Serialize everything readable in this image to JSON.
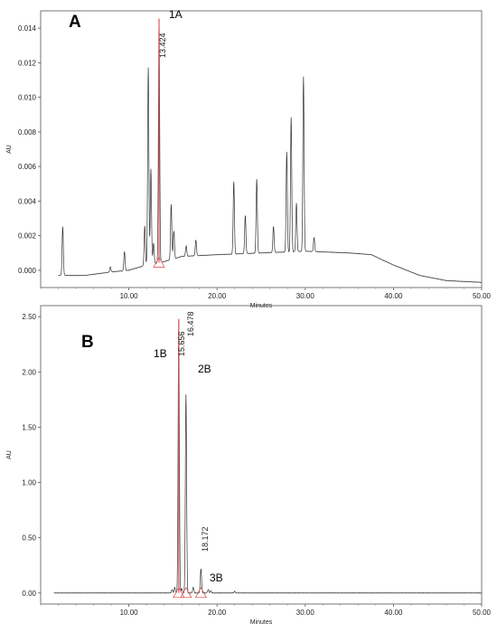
{
  "chart_data": [
    {
      "type": "line",
      "panel_label": "A",
      "xlabel": "Minutes",
      "ylabel": "AU",
      "xlim": [
        0,
        50
      ],
      "ylim": [
        -0.001,
        0.015
      ],
      "x_ticks": [
        "10.00",
        "20.00",
        "30.00",
        "40.00",
        "50.00"
      ],
      "y_ticks": [
        "0.000",
        "0.002",
        "0.004",
        "0.006",
        "0.008",
        "0.010",
        "0.012",
        "0.014"
      ],
      "baseline": [
        [
          0,
          -0.0003
        ],
        [
          5,
          -0.0003
        ],
        [
          8,
          -0.0001
        ],
        [
          10,
          0.0
        ],
        [
          12,
          0.0003
        ],
        [
          14,
          0.0005
        ],
        [
          16,
          0.0008
        ],
        [
          20,
          0.0009
        ],
        [
          25,
          0.001
        ],
        [
          30,
          0.0011
        ],
        [
          35,
          0.001
        ],
        [
          37.5,
          0.0009
        ],
        [
          40,
          0.0003
        ],
        [
          43,
          -0.0003
        ],
        [
          46,
          -0.0006
        ],
        [
          50,
          -0.0007
        ]
      ],
      "peaks": [
        {
          "rt": 2.5,
          "height": 0.0028
        },
        {
          "rt": 7.9,
          "height": 0.0003
        },
        {
          "rt": 9.5,
          "height": 0.0011
        },
        {
          "rt": 11.8,
          "height": 0.0023
        },
        {
          "rt": 12.2,
          "height": 0.0114
        },
        {
          "rt": 12.5,
          "height": 0.0055
        },
        {
          "rt": 12.8,
          "height": 0.0012
        },
        {
          "rt": 13.424,
          "height": 0.0141,
          "highlighted": true,
          "rt_label": "13.424",
          "name": "1A"
        },
        {
          "rt": 14.8,
          "height": 0.0032
        },
        {
          "rt": 15.1,
          "height": 0.0016
        },
        {
          "rt": 16.5,
          "height": 0.0006
        },
        {
          "rt": 17.6,
          "height": 0.0009
        },
        {
          "rt": 21.9,
          "height": 0.0042
        },
        {
          "rt": 23.2,
          "height": 0.0022
        },
        {
          "rt": 24.5,
          "height": 0.0043
        },
        {
          "rt": 26.4,
          "height": 0.0015
        },
        {
          "rt": 27.9,
          "height": 0.0058
        },
        {
          "rt": 28.4,
          "height": 0.0078
        },
        {
          "rt": 29.0,
          "height": 0.0028
        },
        {
          "rt": 29.8,
          "height": 0.0101
        },
        {
          "rt": 31.0,
          "height": 0.0008
        }
      ]
    },
    {
      "type": "line",
      "panel_label": "B",
      "xlabel": "Minutes",
      "ylabel": "AU",
      "xlim": [
        0,
        50
      ],
      "ylim": [
        -0.1,
        2.6
      ],
      "x_ticks": [
        "10.00",
        "20.00",
        "30.00",
        "40.00",
        "50.00"
      ],
      "y_ticks": [
        "0.00",
        "0.50",
        "1.00",
        "1.50",
        "2.00",
        "2.50"
      ],
      "baseline": [
        [
          0,
          0.0
        ],
        [
          50,
          0.0
        ]
      ],
      "peaks": [
        {
          "rt": 14.9,
          "height": 0.03
        },
        {
          "rt": 15.2,
          "height": 0.05
        },
        {
          "rt": 15.656,
          "height": 2.48,
          "highlighted": true,
          "rt_label": "15.656",
          "name": "1B"
        },
        {
          "rt": 16.0,
          "height": 0.04
        },
        {
          "rt": 16.478,
          "height": 1.8,
          "highlighted": false,
          "rt_label": "16.478",
          "name": "2B"
        },
        {
          "rt": 17.3,
          "height": 0.05
        },
        {
          "rt": 18.172,
          "height": 0.22,
          "highlighted": false,
          "rt_label": "18.172",
          "name": "3B"
        },
        {
          "rt": 19.0,
          "height": 0.03
        },
        {
          "rt": 19.3,
          "height": 0.02
        },
        {
          "rt": 22.0,
          "height": 0.015
        }
      ]
    }
  ]
}
